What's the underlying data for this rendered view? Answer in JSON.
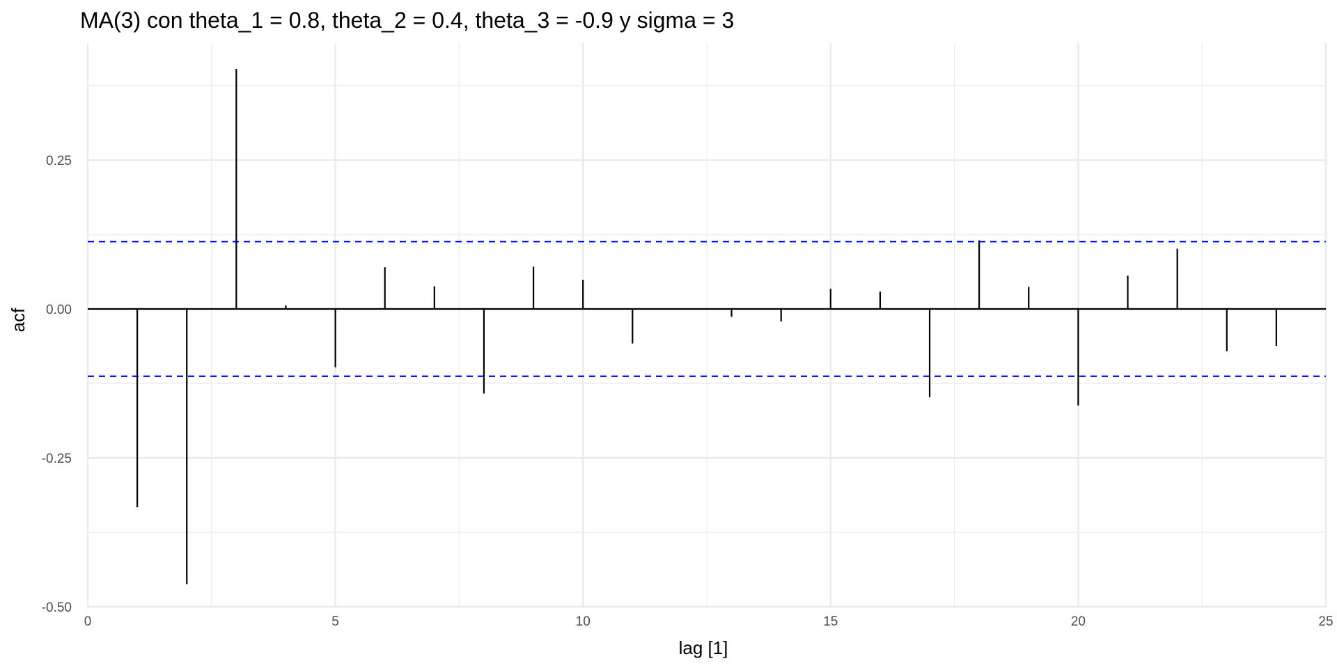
{
  "chart_data": {
    "type": "bar",
    "title": "MA(3) con theta_1 = 0.8, theta_2 = 0.4, theta_3 = -0.9 y sigma = 3",
    "xlabel": "lag [1]",
    "ylabel": "acf",
    "xlim": [
      0,
      25
    ],
    "ylim": [
      -0.5,
      0.4
    ],
    "x_ticks": [
      0,
      5,
      10,
      15,
      20,
      25
    ],
    "y_ticks": [
      -0.5,
      -0.25,
      0.0,
      0.25
    ],
    "y_tick_labels": [
      "-0.50",
      "-0.25",
      "0.00",
      "0.25"
    ],
    "grid": true,
    "confidence_bound": 0.113,
    "confidence_color": "#0000ff",
    "bar_color": "#000000",
    "lags": [
      1,
      2,
      3,
      4,
      5,
      6,
      7,
      8,
      9,
      10,
      11,
      12,
      13,
      14,
      15,
      16,
      17,
      18,
      19,
      20,
      21,
      22,
      23,
      24
    ],
    "values": [
      -0.333,
      -0.462,
      0.403,
      0.006,
      -0.098,
      0.07,
      0.038,
      -0.142,
      0.071,
      0.049,
      -0.058,
      0.0,
      -0.013,
      -0.021,
      0.034,
      0.029,
      -0.148,
      0.115,
      0.037,
      -0.162,
      0.056,
      0.101,
      -0.071,
      -0.062
    ]
  }
}
